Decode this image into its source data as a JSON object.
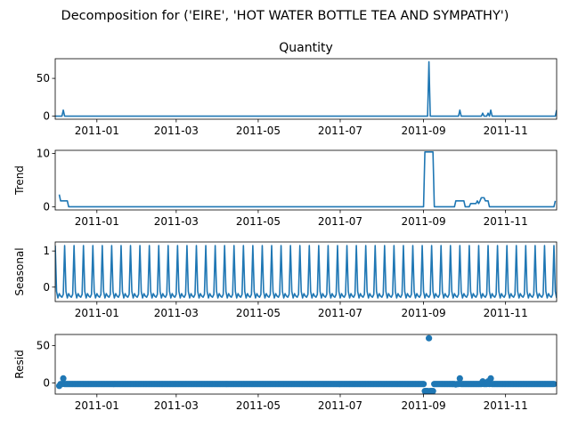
{
  "figure_title": "Decomposition for ('EIRE', 'HOT WATER BOTTLE TEA AND SYMPATHY')",
  "x_tick_labels": [
    "2011-01",
    "2011-03",
    "2011-05",
    "2011-07",
    "2011-09",
    "2011-11"
  ],
  "colors": {
    "line": "#1f77b4",
    "axis": "#000000",
    "background": "#ffffff"
  },
  "chart_data": [
    {
      "type": "line",
      "title": "Quantity",
      "ylabel": "",
      "xlim": [
        "2010-12-01",
        "2011-12-09"
      ],
      "ylim": [
        -4,
        76
      ],
      "yticks": [
        0,
        50
      ],
      "x": [
        "2010-12-01",
        "2010-12-06",
        "2010-12-07",
        "2010-12-08",
        "2011-09-04",
        "2011-09-05",
        "2011-09-06",
        "2011-09-27",
        "2011-09-28",
        "2011-09-29",
        "2011-10-14",
        "2011-10-15",
        "2011-10-16",
        "2011-10-18",
        "2011-10-19",
        "2011-10-20",
        "2011-10-21",
        "2011-10-22",
        "2011-10-23",
        "2011-12-08",
        "2011-12-09"
      ],
      "values": [
        0,
        0,
        8,
        0,
        0,
        72,
        0,
        0,
        8,
        0,
        0,
        4,
        0,
        0,
        4,
        0,
        8,
        0,
        0,
        0,
        8
      ]
    },
    {
      "type": "line",
      "title": "",
      "ylabel": "Trend",
      "xlim": [
        "2010-12-01",
        "2011-12-09"
      ],
      "ylim": [
        -0.6,
        10.6
      ],
      "yticks": [
        0,
        10
      ],
      "x": [
        "2010-12-04",
        "2010-12-05",
        "2010-12-06",
        "2010-12-10",
        "2010-12-11",
        "2011-09-01",
        "2011-09-02",
        "2011-09-08",
        "2011-09-09",
        "2011-09-24",
        "2011-09-25",
        "2011-10-01",
        "2011-10-02",
        "2011-10-05",
        "2011-10-06",
        "2011-10-10",
        "2011-10-11",
        "2011-10-12",
        "2011-10-13",
        "2011-10-14",
        "2011-10-16",
        "2011-10-17",
        "2011-10-19",
        "2011-10-20",
        "2011-10-21",
        "2011-12-07",
        "2011-12-08"
      ],
      "values": [
        2.3,
        1.1,
        1.1,
        1.1,
        0,
        0,
        10.3,
        10.3,
        0,
        0,
        1.1,
        1.1,
        0,
        0,
        0.6,
        0.6,
        1.1,
        0.6,
        1.1,
        1.7,
        1.7,
        1.1,
        1.1,
        0,
        0,
        0,
        1.1
      ]
    },
    {
      "type": "line",
      "title": "",
      "ylabel": "Seasonal",
      "xlim": [
        "2010-12-01",
        "2011-12-09"
      ],
      "ylim": [
        -0.4,
        1.25
      ],
      "yticks": [
        0,
        1
      ],
      "period_days": 7,
      "pattern": [
        1.15,
        -0.12,
        -0.3,
        -0.18,
        -0.25,
        -0.28,
        -0.2
      ]
    },
    {
      "type": "scatter",
      "title": "",
      "ylabel": "Resid",
      "xlim": [
        "2010-12-01",
        "2011-12-09"
      ],
      "ylim": [
        -15,
        65
      ],
      "yticks": [
        0,
        50
      ],
      "baseline": -1.5,
      "outliers": [
        {
          "x": "2010-12-04",
          "y": -4
        },
        {
          "x": "2010-12-07",
          "y": 6
        },
        {
          "x": "2011-09-02",
          "y": -11
        },
        {
          "x": "2011-09-03",
          "y": -11
        },
        {
          "x": "2011-09-04",
          "y": -11
        },
        {
          "x": "2011-09-05",
          "y": 60
        },
        {
          "x": "2011-09-06",
          "y": -11
        },
        {
          "x": "2011-09-07",
          "y": -11
        },
        {
          "x": "2011-09-08",
          "y": -11
        },
        {
          "x": "2011-09-25",
          "y": -2
        },
        {
          "x": "2011-09-28",
          "y": 6
        },
        {
          "x": "2011-10-15",
          "y": 2
        },
        {
          "x": "2011-10-19",
          "y": 2
        },
        {
          "x": "2011-10-21",
          "y": 6
        },
        {
          "x": "2011-12-08",
          "y": -2
        }
      ]
    }
  ]
}
